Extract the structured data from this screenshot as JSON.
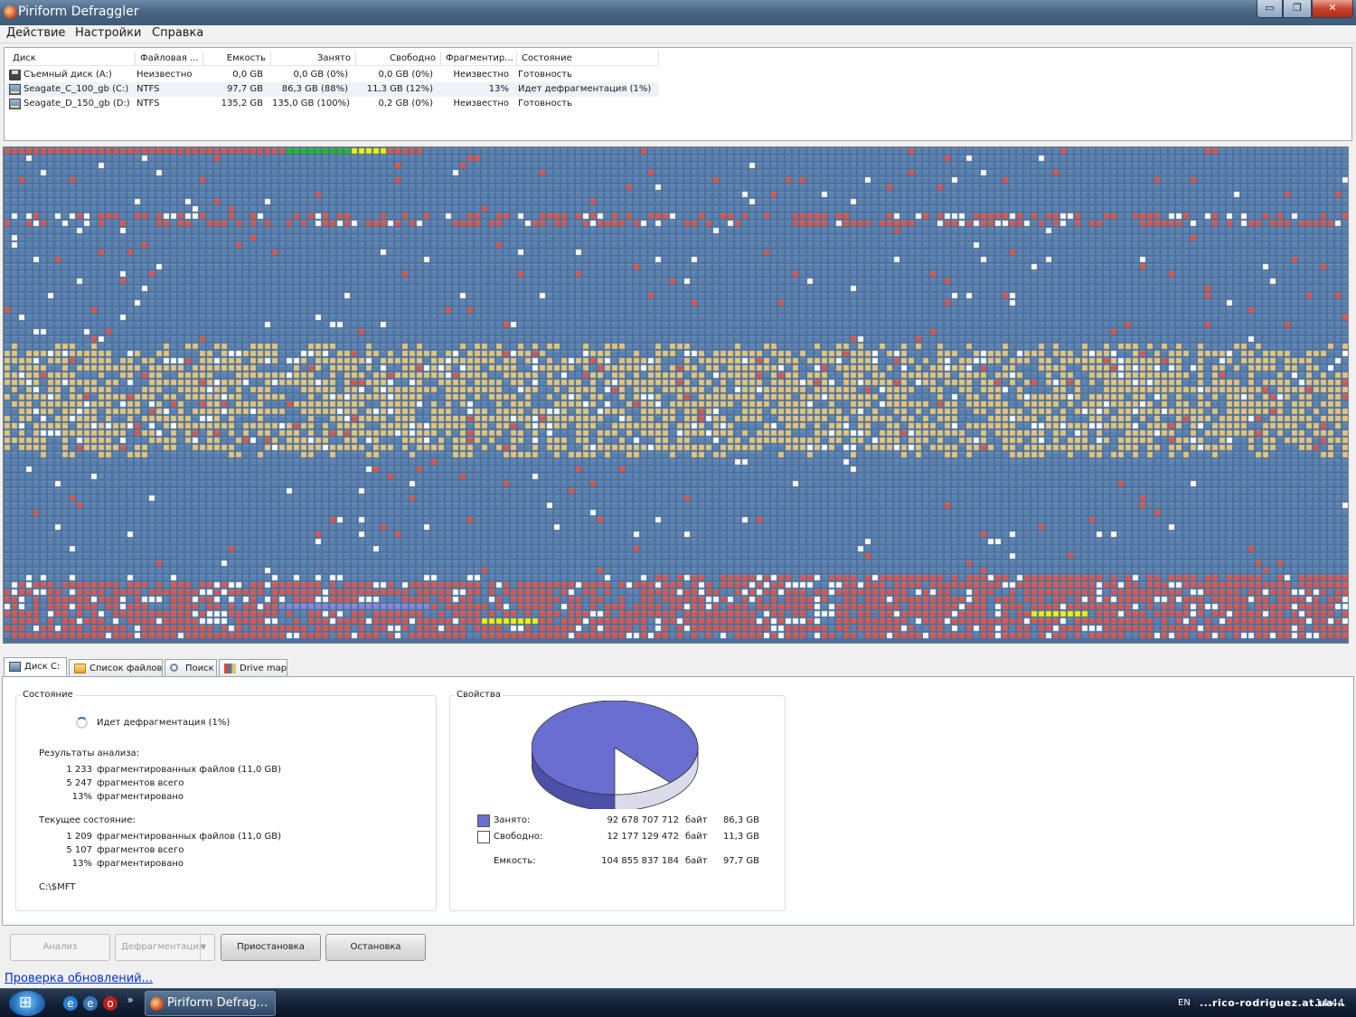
{
  "window": {
    "title": "Piriform Defraggler",
    "min_glyph": "▭",
    "max_glyph": "❐",
    "close_glyph": "✕"
  },
  "menu": [
    "Действие",
    "Настройки",
    "Справка"
  ],
  "disk_table": {
    "columns": [
      "Диск",
      "Файловая ...",
      "Емкость",
      "Занято",
      "Свободно",
      "Фрагментир...",
      "Состояние"
    ],
    "rows": [
      {
        "icon": "floppy-icon",
        "disk": "Съемный диск (A:)",
        "fs": "Неизвестно",
        "capacity": "0,0 GB",
        "used": "0,0 GB (0%)",
        "free": "0,0 GB (0%)",
        "frag": "Неизвестно",
        "status": "Готовность"
      },
      {
        "icon": "hard-drive-icon",
        "disk": "Seagate_C_100_gb (C:)",
        "fs": "NTFS",
        "capacity": "97,7 GB",
        "used": "86,3 GB (88%)",
        "free": "11,3 GB (12%)",
        "frag": "13%",
        "status": "Идет дефрагментация (1%)"
      },
      {
        "icon": "hard-drive-icon",
        "disk": "Seagate_D_150_gb (D:)",
        "fs": "NTFS",
        "capacity": "135,2 GB",
        "used": "135,0 GB (100%)",
        "free": "0,2 GB (0%)",
        "frag": "Неизвестно",
        "status": "Готовность"
      }
    ]
  },
  "drive_map_colors": {
    "used": "#5b82b0",
    "fragmented": "#d9574e",
    "free": "#ffffff",
    "system": "#e3c47a",
    "defragmenting": "#22bb22",
    "moving": "#f4f000",
    "reserved": "#8a84d6"
  },
  "tabs": [
    {
      "label": "Диск C:",
      "icon": "disk-icon"
    },
    {
      "label": "Список файлов",
      "icon": "folder-icon"
    },
    {
      "label": "Поиск",
      "icon": "search-icon"
    },
    {
      "label": "Drive map",
      "icon": "drive-map-icon"
    }
  ],
  "status_panel": {
    "title": "Состояние",
    "status": "Идет дефрагментация (1%)",
    "analysis_title": "Результаты анализа:",
    "analysis": [
      {
        "num": "1 233",
        "text": "фрагментированных файлов (11,0 GB)"
      },
      {
        "num": "5 247",
        "text": "фрагментов всего"
      },
      {
        "num": "13%",
        "text": "фрагментировано"
      }
    ],
    "current_title": "Текущее состояние:",
    "current": [
      {
        "num": "1 209",
        "text": "фрагментированных файлов (11,0 GB)"
      },
      {
        "num": "5 107",
        "text": "фрагментов всего"
      },
      {
        "num": "13%",
        "text": "фрагментировано"
      }
    ],
    "current_file": "C:\\$MFT"
  },
  "properties_panel": {
    "title": "Свойства",
    "used_fraction": 0.884,
    "colors": {
      "used": "#6a6ed0",
      "free": "#ffffff"
    },
    "rows": [
      {
        "label": "Занято:",
        "bytes": "92 678 707 712",
        "unit": "байт",
        "size": "86,3 GB"
      },
      {
        "label": "Свободно:",
        "bytes": "12 177 129 472",
        "unit": "байт",
        "size": "11,3 GB"
      },
      {
        "label": "Емкость:",
        "bytes": "104 855 837 184",
        "unit": "байт",
        "size": "97,7 GB"
      }
    ]
  },
  "buttons": {
    "analyze": "Анализ",
    "defrag": "Дефрагментация",
    "pause": "Приостановка",
    "stop": "Остановка"
  },
  "update_link": "Проверка обновлений...",
  "taskbar": {
    "task_label": "Piriform Defrag...",
    "lang": "EN",
    "tray_text": "...rico-rodriguez.at.ua...",
    "time": "14:44"
  }
}
